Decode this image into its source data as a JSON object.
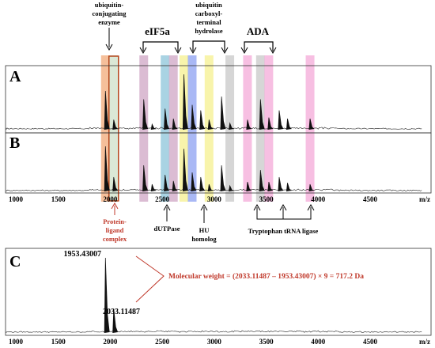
{
  "chart_data": [
    {
      "panel": "A",
      "type": "line",
      "xlabel": "m/z",
      "xlim": [
        1000,
        5000
      ],
      "peaks": [
        {
          "x": 1953,
          "y": 0.7
        },
        {
          "x": 2033,
          "y": 0.18
        },
        {
          "x": 2322,
          "y": 0.55
        },
        {
          "x": 2402,
          "y": 0.1
        },
        {
          "x": 2527,
          "y": 0.38
        },
        {
          "x": 2607,
          "y": 0.2
        },
        {
          "x": 2708,
          "y": 1.0
        },
        {
          "x": 2788,
          "y": 0.45
        },
        {
          "x": 2870,
          "y": 0.35
        },
        {
          "x": 2950,
          "y": 0.18
        },
        {
          "x": 3070,
          "y": 0.6
        },
        {
          "x": 3150,
          "y": 0.12
        },
        {
          "x": 3320,
          "y": 0.18
        },
        {
          "x": 3445,
          "y": 0.55
        },
        {
          "x": 3525,
          "y": 0.22
        },
        {
          "x": 3625,
          "y": 0.35
        },
        {
          "x": 3705,
          "y": 0.2
        },
        {
          "x": 3922,
          "y": 0.2
        }
      ]
    },
    {
      "panel": "B",
      "type": "line",
      "xlabel": "m/z",
      "xlim": [
        1000,
        5000
      ],
      "peaks": [
        {
          "x": 1953,
          "y": 0.95
        },
        {
          "x": 2033,
          "y": 0.3
        },
        {
          "x": 2322,
          "y": 0.55
        },
        {
          "x": 2402,
          "y": 0.15
        },
        {
          "x": 2527,
          "y": 0.35
        },
        {
          "x": 2607,
          "y": 0.22
        },
        {
          "x": 2708,
          "y": 0.9
        },
        {
          "x": 2788,
          "y": 0.4
        },
        {
          "x": 2870,
          "y": 0.3
        },
        {
          "x": 2950,
          "y": 0.15
        },
        {
          "x": 3070,
          "y": 0.55
        },
        {
          "x": 3150,
          "y": 0.12
        },
        {
          "x": 3320,
          "y": 0.2
        },
        {
          "x": 3445,
          "y": 0.45
        },
        {
          "x": 3525,
          "y": 0.2
        },
        {
          "x": 3625,
          "y": 0.3
        },
        {
          "x": 3705,
          "y": 0.18
        },
        {
          "x": 3922,
          "y": 0.15
        }
      ]
    },
    {
      "panel": "C",
      "type": "line",
      "xlabel": "m/z",
      "xlim": [
        1000,
        5000
      ],
      "peaks": [
        {
          "x": 1953.43007,
          "y": 1.0,
          "label": "1953.43007"
        },
        {
          "x": 2033.11487,
          "y": 0.32,
          "label": "2033.11487"
        }
      ]
    }
  ],
  "x_ticks": [
    "1000",
    "1500",
    "2000",
    "2500",
    "3000",
    "3500",
    "4000",
    "4500"
  ],
  "x_tick_values": [
    1000,
    1500,
    2000,
    2500,
    3000,
    3500,
    4000,
    4500
  ],
  "panel_letters": [
    "A",
    "B",
    "C"
  ],
  "bands": [
    {
      "x": 1953,
      "color": "#f2a978"
    },
    {
      "x": 2033,
      "color": "#cfe0c8"
    },
    {
      "x": 2322,
      "color": "#cfa6c4"
    },
    {
      "x": 2527,
      "color": "#8cc4da"
    },
    {
      "x": 2607,
      "color": "#cfa6c4"
    },
    {
      "x": 2708,
      "color": "#f6f08f"
    },
    {
      "x": 2788,
      "color": "#8ca0f2"
    },
    {
      "x": 2950,
      "color": "#f6f08f"
    },
    {
      "x": 3150,
      "color": "#c8c8c8"
    },
    {
      "x": 3320,
      "color": "#f4a9d8"
    },
    {
      "x": 3445,
      "color": "#c8c8c8"
    },
    {
      "x": 3525,
      "color": "#f4a9d8"
    },
    {
      "x": 3922,
      "color": "#f4a9d8"
    }
  ],
  "annotations": {
    "ubiquitin_conj": [
      "ubiquitin-",
      "conjugating",
      "enzyme"
    ],
    "eif5a": "eIF5a",
    "ubiquitin_hydro": [
      "ubiquitin",
      "carboxyl-",
      "terminal",
      "hydrolase"
    ],
    "ada": "ADA",
    "protein_ligand": [
      "Protein-",
      "ligand",
      "complex"
    ],
    "dutpase": "dUTPase",
    "hu": [
      "HU",
      "homolog"
    ],
    "trna": "Tryptophan tRNA ligase",
    "mw": "Molecular weight = (2033.11487 – 1953.43007) × 9 = 717.2 Da"
  },
  "colors": {
    "red": "#c0392b",
    "box_orange": "#b5441a"
  }
}
